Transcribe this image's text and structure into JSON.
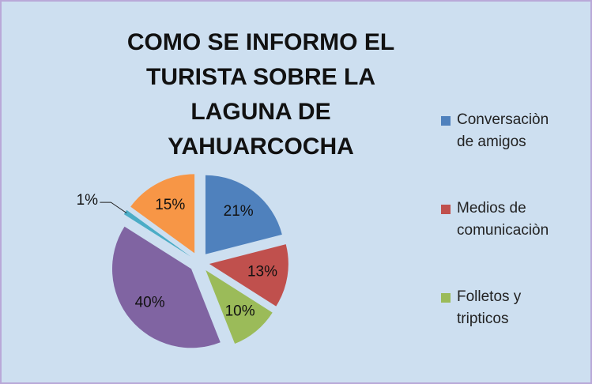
{
  "chart_data": {
    "type": "pie",
    "title": "COMO SE INFORMO EL TURISTA SOBRE LA LAGUNA DE YAHUARCOCHA",
    "categories": [
      "Conversaciòn de amigos",
      "Medios de comunicaciòn",
      "Folletos y tripticos",
      null,
      null,
      null
    ],
    "values": [
      21,
      13,
      10,
      40,
      1,
      15
    ],
    "value_labels": [
      "21%",
      "13%",
      "10%",
      "40%",
      "1%",
      "15%"
    ],
    "colors": [
      "#4f81bd",
      "#c0504d",
      "#9bbb59",
      "#8064a2",
      "#4bacc6",
      "#f79646"
    ],
    "legend": "right"
  }
}
